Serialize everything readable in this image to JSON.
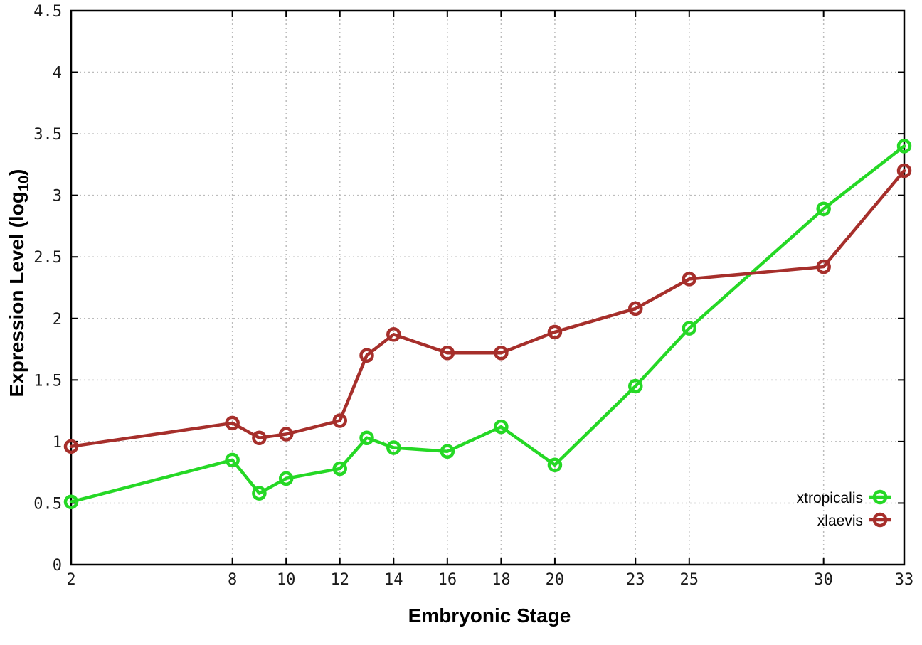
{
  "chart_data": {
    "type": "line",
    "title": "",
    "xlabel": "Embryonic Stage",
    "ylabel": "Expression Level (log10)",
    "ylabel_parts": {
      "prefix": "Expression Level (log",
      "sub": "10",
      "suffix": ")"
    },
    "xlim": [
      2,
      33
    ],
    "ylim": [
      0,
      4.5
    ],
    "x_ticks": [
      2,
      8,
      10,
      12,
      14,
      16,
      18,
      20,
      23,
      25,
      30,
      33
    ],
    "y_ticks": [
      0,
      0.5,
      1,
      1.5,
      2,
      2.5,
      3,
      3.5,
      4,
      4.5
    ],
    "grid": true,
    "legend_position": "inside-bottom-right",
    "x": [
      2,
      8,
      9,
      10,
      12,
      13,
      14,
      16,
      18,
      20,
      23,
      25,
      30,
      33
    ],
    "series": [
      {
        "name": "xtropicalis",
        "color": "#25d825",
        "marker": "open-circle",
        "values": [
          0.51,
          0.85,
          0.58,
          0.7,
          0.78,
          1.03,
          0.95,
          0.92,
          1.12,
          0.81,
          1.45,
          1.92,
          2.89,
          3.4
        ]
      },
      {
        "name": "xlaevis",
        "color": "#a62f2b",
        "marker": "open-circle",
        "values": [
          0.96,
          1.15,
          1.03,
          1.06,
          1.17,
          1.7,
          1.87,
          1.72,
          1.72,
          1.89,
          2.08,
          2.32,
          2.42,
          3.2
        ]
      }
    ],
    "colors": {
      "border": "#000000",
      "grid": "#bcbcbc",
      "tick_text": "#1a1a1a",
      "background": "#ffffff"
    }
  }
}
